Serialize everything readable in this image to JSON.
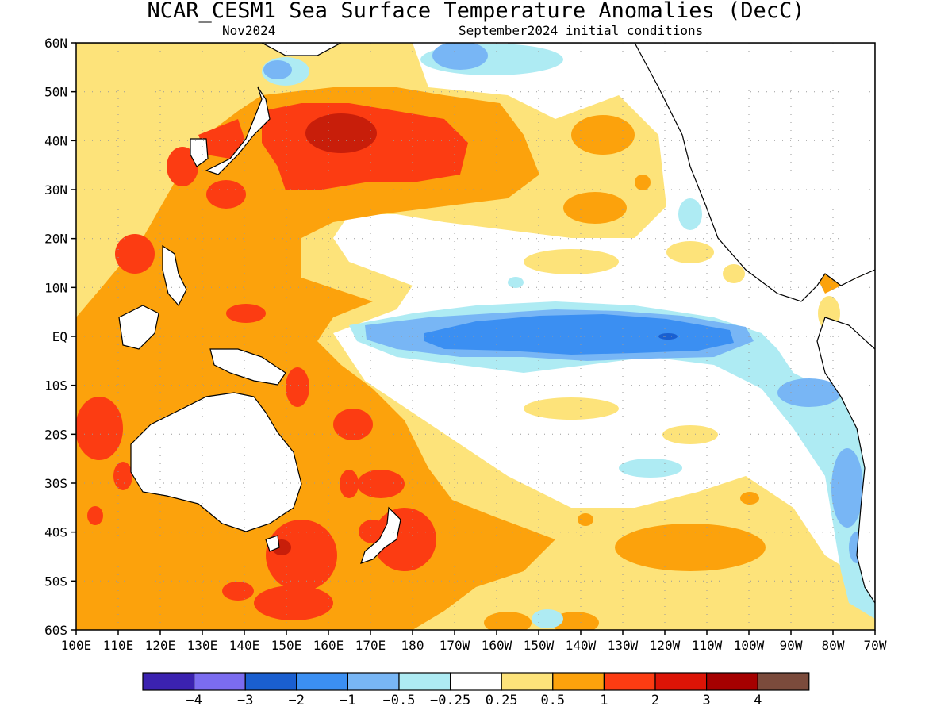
{
  "title": "NCAR_CESM1 Sea Surface Temperature Anomalies (DecC)",
  "subtitle_left": "Nov2024",
  "subtitle_right": "September2024 initial conditions",
  "map": {
    "lon_range": [
      100,
      290
    ],
    "lat_range": [
      -60,
      60
    ],
    "grid": true,
    "y_ticks": [
      "60N",
      "50N",
      "40N",
      "30N",
      "20N",
      "10N",
      "EQ",
      "10S",
      "20S",
      "30S",
      "40S",
      "50S",
      "60S"
    ],
    "x_ticks": [
      "100E",
      "110E",
      "120E",
      "130E",
      "140E",
      "150E",
      "160E",
      "170E",
      "180",
      "170W",
      "160W",
      "150W",
      "140W",
      "130W",
      "120W",
      "110W",
      "100W",
      "90W",
      "80W",
      "70W"
    ]
  },
  "colorbar": {
    "colors": [
      "#3b22b0",
      "#7b6cf0",
      "#1a5fd0",
      "#3b8ff2",
      "#78b6f5",
      "#aeebf3",
      "#ffffff",
      "#fde37a",
      "#fca20c",
      "#fc3c12",
      "#dc1406",
      "#a50000",
      "#7b4b3c"
    ],
    "labels": [
      "−4",
      "−3",
      "−2",
      "−1",
      "−0.5",
      "−0.25",
      "0.25",
      "0.5",
      "1",
      "2",
      "3",
      "4"
    ]
  }
}
